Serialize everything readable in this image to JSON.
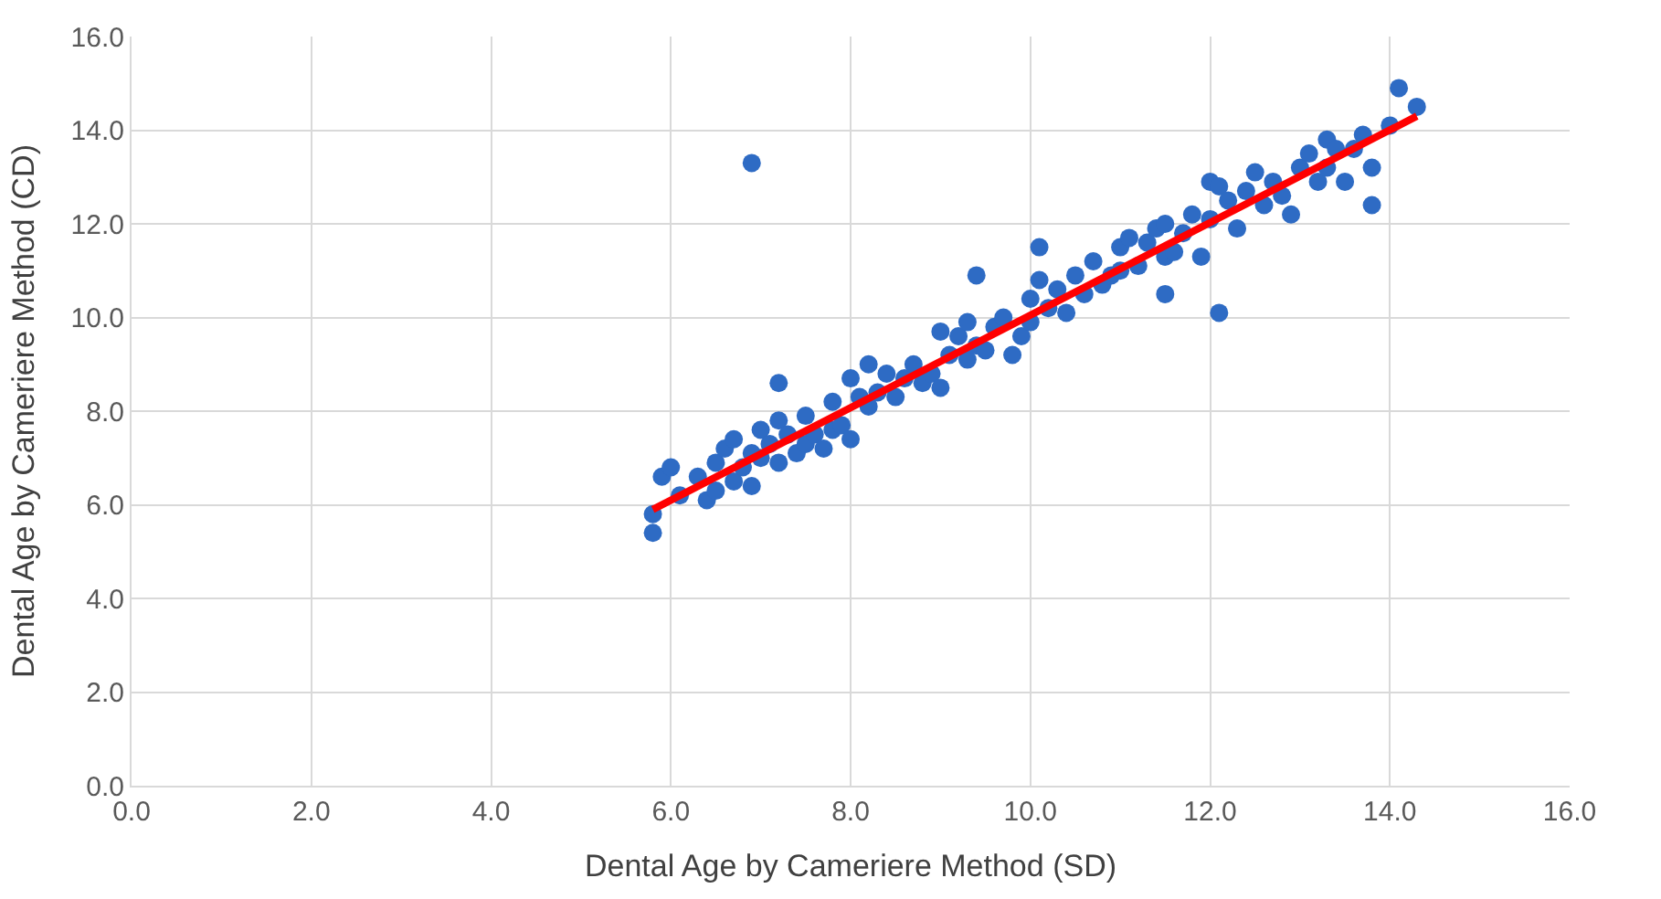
{
  "chart_data": {
    "type": "scatter",
    "xlabel": "Dental Age by Cameriere Method (SD)",
    "ylabel": "Dental Age by Cameriere Method (CD)",
    "xlim": [
      0,
      16
    ],
    "ylim": [
      0,
      16
    ],
    "xticks": [
      {
        "value": 0,
        "label": "0.0"
      },
      {
        "value": 2,
        "label": "2.0"
      },
      {
        "value": 4,
        "label": "4.0"
      },
      {
        "value": 6,
        "label": "6.0"
      },
      {
        "value": 8,
        "label": "8.0"
      },
      {
        "value": 10,
        "label": "10.0"
      },
      {
        "value": 12,
        "label": "12.0"
      },
      {
        "value": 14,
        "label": "14.0"
      },
      {
        "value": 16,
        "label": "16.0"
      }
    ],
    "yticks": [
      {
        "value": 0,
        "label": "0.0"
      },
      {
        "value": 2,
        "label": "2.0"
      },
      {
        "value": 4,
        "label": "4.0"
      },
      {
        "value": 6,
        "label": "6.0"
      },
      {
        "value": 8,
        "label": "8.0"
      },
      {
        "value": 10,
        "label": "10.0"
      },
      {
        "value": 12,
        "label": "12.0"
      },
      {
        "value": 14,
        "label": "14.0"
      },
      {
        "value": 16,
        "label": "16.0"
      }
    ],
    "grid": true,
    "series": [
      {
        "marker": "circle",
        "color": "#2e6bc4",
        "x": [
          5.8,
          5.8,
          5.9,
          6.0,
          6.1,
          6.3,
          6.4,
          6.5,
          6.5,
          6.6,
          6.7,
          6.7,
          6.8,
          6.9,
          6.9,
          7.0,
          7.0,
          7.1,
          7.2,
          7.2,
          7.3,
          7.4,
          7.5,
          7.5,
          7.6,
          7.7,
          7.8,
          7.8,
          7.9,
          8.0,
          8.0,
          8.1,
          8.2,
          8.2,
          8.3,
          8.4,
          8.5,
          8.6,
          8.7,
          8.8,
          8.9,
          9.0,
          9.0,
          9.1,
          9.2,
          9.3,
          9.3,
          9.4,
          9.5,
          9.6,
          9.7,
          9.8,
          9.9,
          10.0,
          10.0,
          10.1,
          10.2,
          10.3,
          10.4,
          10.5,
          10.6,
          10.7,
          10.8,
          10.9,
          11.0,
          11.0,
          11.1,
          11.2,
          11.3,
          11.4,
          11.5,
          11.5,
          11.6,
          11.7,
          11.8,
          11.9,
          12.0,
          12.0,
          12.1,
          12.2,
          12.3,
          12.4,
          12.5,
          12.6,
          12.7,
          12.8,
          12.9,
          13.0,
          13.1,
          13.2,
          13.3,
          13.3,
          13.4,
          13.5,
          13.6,
          13.7,
          13.8,
          14.0,
          14.1,
          14.3,
          6.9,
          12.1,
          13.8,
          7.2,
          10.1,
          9.4,
          11.5
        ],
        "values": [
          5.8,
          5.4,
          6.6,
          6.8,
          6.2,
          6.6,
          6.1,
          6.9,
          6.3,
          7.2,
          6.5,
          7.4,
          6.8,
          6.4,
          7.1,
          7.0,
          7.6,
          7.3,
          6.9,
          7.8,
          7.5,
          7.1,
          7.9,
          7.3,
          7.5,
          7.2,
          8.2,
          7.6,
          7.7,
          7.4,
          8.7,
          8.3,
          8.1,
          9.0,
          8.4,
          8.8,
          8.3,
          8.7,
          9.0,
          8.6,
          8.8,
          8.5,
          9.7,
          9.2,
          9.6,
          9.1,
          9.9,
          9.4,
          9.3,
          9.8,
          10.0,
          9.2,
          9.6,
          10.4,
          9.9,
          10.8,
          10.2,
          10.6,
          10.1,
          10.9,
          10.5,
          11.2,
          10.7,
          10.9,
          11.5,
          11.0,
          11.7,
          11.1,
          11.6,
          11.9,
          11.3,
          12.0,
          11.4,
          11.8,
          12.2,
          11.3,
          12.9,
          12.1,
          12.8,
          12.5,
          11.9,
          12.7,
          13.1,
          12.4,
          12.9,
          12.6,
          12.2,
          13.2,
          13.5,
          12.9,
          13.8,
          13.2,
          13.6,
          12.9,
          13.6,
          13.9,
          13.2,
          14.1,
          14.9,
          14.5,
          13.3,
          10.1,
          12.4,
          8.6,
          11.5,
          10.9,
          10.5
        ]
      },
      {
        "type": "line",
        "marker": "none",
        "color": "#ff0000",
        "x": [
          5.8,
          14.3
        ],
        "values": [
          5.9,
          14.3
        ]
      }
    ]
  }
}
